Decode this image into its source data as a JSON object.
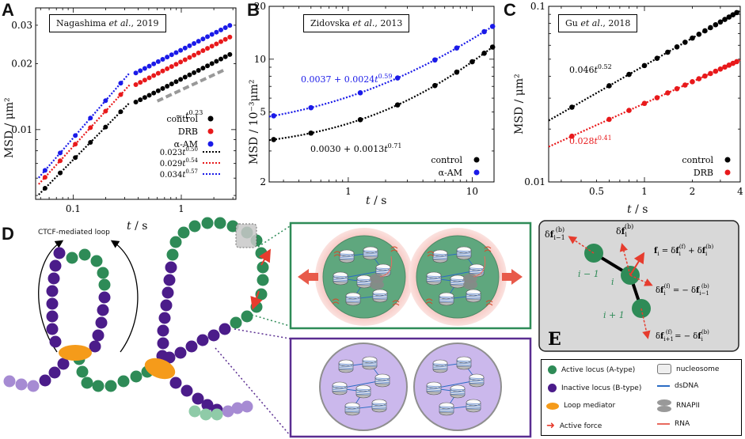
{
  "panels": {
    "A": {
      "letter": "A",
      "ref_author": "Nagashima",
      "ref_etal": " et al.",
      "ref_year": ", 2019"
    },
    "B": {
      "letter": "B",
      "ref_author": "Zidovska",
      "ref_etal": " et al.",
      "ref_year": ", 2013"
    },
    "C": {
      "letter": "C",
      "ref_author": "Gu",
      "ref_etal": " et al.",
      "ref_year": ", 2018"
    },
    "D": {
      "letter": "D",
      "loop_label": "CTCF-mediated loop"
    },
    "E": {
      "letter": "E"
    }
  },
  "chart_data": [
    {
      "id": "A",
      "type": "scatter",
      "scale": "log-log",
      "xlabel": "t / s",
      "ylabel": "MSD / μm²",
      "xlim": [
        0.045,
        3.2
      ],
      "ylim": [
        0.0048,
        0.036
      ],
      "xticks": [
        {
          "v": 0.1,
          "l": "0.1"
        },
        {
          "v": 1,
          "l": "1"
        }
      ],
      "yticks": [
        {
          "v": 0.01,
          "l": "0.01"
        },
        {
          "v": 0.02,
          "l": "0.02"
        },
        {
          "v": 0.03,
          "l": "0.03"
        }
      ],
      "series": [
        {
          "name": "control",
          "color": "#000000",
          "fit": "0.023t^0.50",
          "a": 0.023,
          "b": 0.5
        },
        {
          "name": "DRB",
          "color": "#e8191b",
          "fit": "0.029t^0.54",
          "a": 0.029,
          "b": 0.54
        },
        {
          "name": "α-AM",
          "color": "#1a1ae8",
          "fit": "0.034t^0.57",
          "a": 0.034,
          "b": 0.57
        }
      ],
      "annotation": "~ t^0.23",
      "fit_labels": [
        {
          "base": "0.023t",
          "exp": "0.50"
        },
        {
          "base": "0.029t",
          "exp": "0.54"
        },
        {
          "base": "0.034t",
          "exp": "0.57"
        }
      ]
    },
    {
      "id": "B",
      "type": "scatter",
      "scale": "log-log",
      "xlabel": "t / s",
      "ylabel": "MSD / 10⁻³μm²",
      "xlim": [
        0.23,
        15
      ],
      "ylim": [
        2,
        20
      ],
      "xticks": [
        {
          "v": 1,
          "l": "1"
        },
        {
          "v": 10,
          "l": "10"
        }
      ],
      "yticks": [
        {
          "v": 2,
          "l": "2"
        },
        {
          "v": 5,
          "l": "5"
        },
        {
          "v": 10,
          "l": "10"
        },
        {
          "v": 20,
          "l": "20"
        }
      ],
      "series": [
        {
          "name": "control",
          "color": "#000000",
          "fit": "0.0030 + 0.0013t^0.71",
          "c": 3.0,
          "a": 1.3,
          "b": 0.71
        },
        {
          "name": "α-AM",
          "color": "#1a1ae8",
          "fit": "0.0037 + 0.0024t^0.59",
          "c": 3.7,
          "a": 2.4,
          "b": 0.59
        }
      ],
      "fit_labels": [
        {
          "base": "0.0030 + 0.0013t",
          "exp": "0.71"
        },
        {
          "base": "0.0037 + 0.0024t",
          "exp": "0.59"
        }
      ]
    },
    {
      "id": "C",
      "type": "scatter",
      "scale": "log-log",
      "xlabel": "t / s",
      "ylabel": "MSD / μm²",
      "xlim": [
        0.25,
        4
      ],
      "ylim": [
        0.01,
        0.1
      ],
      "xticks": [
        {
          "v": 0.5,
          "l": "0.5"
        },
        {
          "v": 1,
          "l": "1"
        },
        {
          "v": 2,
          "l": "2"
        },
        {
          "v": 4,
          "l": "4"
        }
      ],
      "yticks": [
        {
          "v": 0.01,
          "l": "0.01"
        },
        {
          "v": 0.1,
          "l": "0.1"
        }
      ],
      "series": [
        {
          "name": "control",
          "color": "#000000",
          "fit": "0.046t^0.52",
          "a": 0.046,
          "b": 0.52
        },
        {
          "name": "DRB",
          "color": "#e8191b",
          "fit": "0.028t^0.41",
          "a": 0.028,
          "b": 0.41
        }
      ],
      "fit_labels": [
        {
          "base": "0.046t",
          "exp": "0.52"
        },
        {
          "base": "0.028t",
          "exp": "0.41"
        }
      ]
    }
  ],
  "panelE": {
    "labels": {
      "i_minus_1": "i − 1",
      "i": "i",
      "i_plus_1": "i + 1"
    },
    "eq1": "f_i = δf_i^(f) + δf_i^(b)",
    "eq2": "δf_i^(f) = − δf_{i−1}^(b)",
    "eq3": "δf_{i+1}^(f) = − δf_i^(b)",
    "top_left": "δf_{i−1}^(b)",
    "top_mid": "δf_i^(b)"
  },
  "legend": {
    "active": "Active locus (A-type)",
    "inactive": "Inactive locus (B-type)",
    "mediator": "Loop mediator",
    "force": "Active force",
    "nucleosome": "nucleosome",
    "dsdna": "dsDNA",
    "rnapii": "RNAPII",
    "rna": "RNA"
  },
  "colors": {
    "green": "#2e8b57",
    "purple": "#4b1c8a",
    "light_purple": "#a68bd3",
    "light_green": "#8fcba8",
    "orange": "#f59b1a",
    "red": "#e63c2e",
    "box_green": "#2e8b57",
    "box_purple": "#5a2d91",
    "gray_panel": "#d8d8d8"
  }
}
